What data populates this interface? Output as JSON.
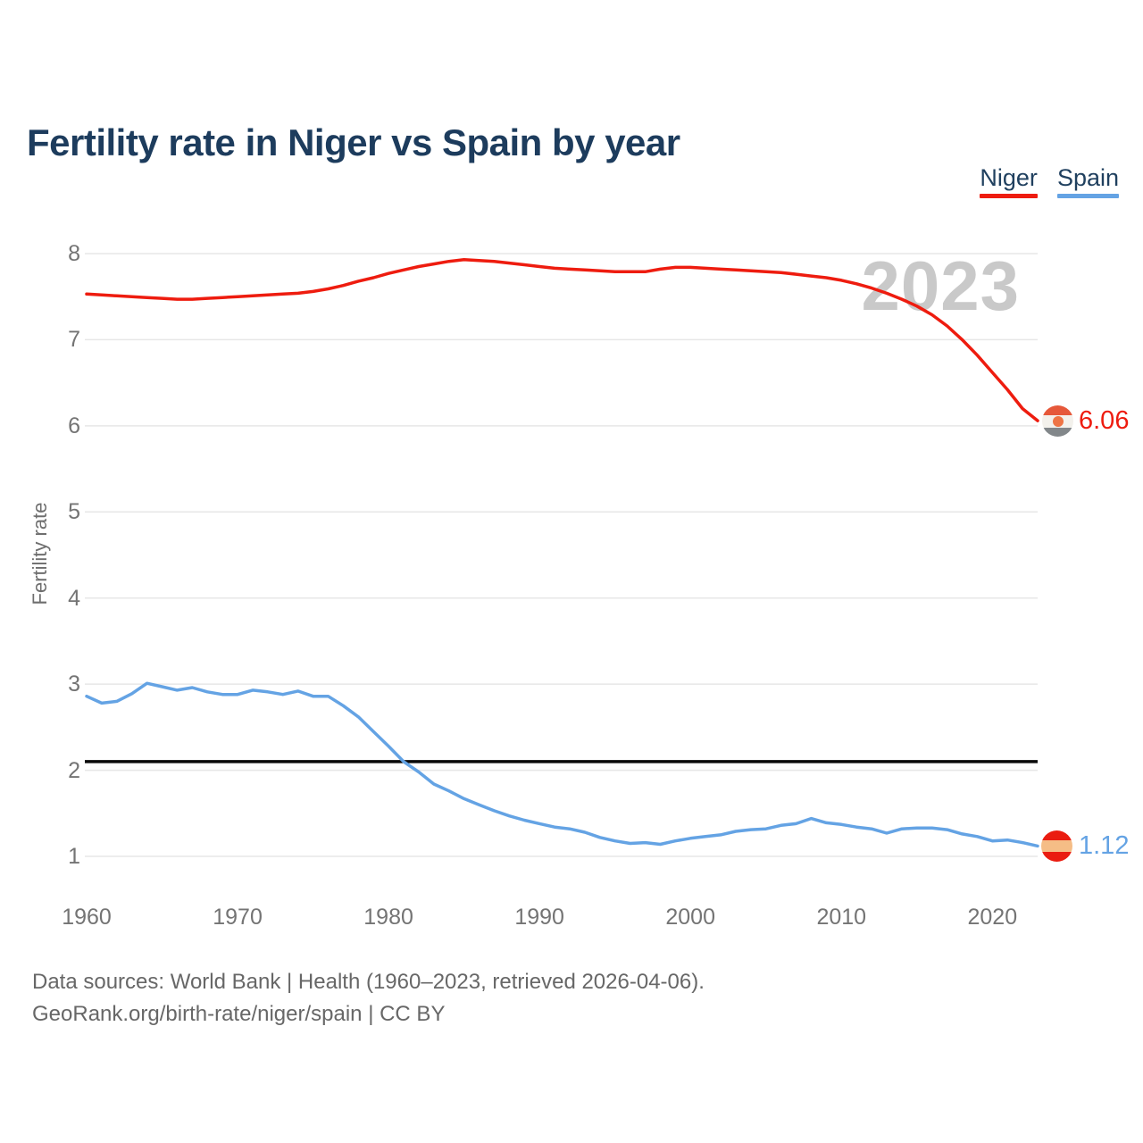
{
  "title": "Fertility rate in Niger vs Spain by year",
  "watermark": "2023",
  "legend": [
    {
      "label": "Niger",
      "color": "#ee1c0f"
    },
    {
      "label": "Spain",
      "color": "#64a3e4"
    }
  ],
  "y_axis": {
    "label": "Fertility rate",
    "ticks": [
      8,
      7,
      6,
      5,
      4,
      3,
      2,
      1
    ]
  },
  "x_axis": {
    "ticks": [
      1960,
      1970,
      1980,
      1990,
      2000,
      2010,
      2020
    ]
  },
  "reference_line": {
    "value": 2.1,
    "color": "#0a0a0a"
  },
  "end_labels": [
    {
      "series": "Niger",
      "value": "6.06",
      "color": "#ee1c0f",
      "icon": "niger-flag-icon"
    },
    {
      "series": "Spain",
      "value": "1.12",
      "color": "#64a3e4",
      "icon": "spain-flag-icon"
    }
  ],
  "footer": {
    "line1": "Data sources: World Bank | Health (1960–2023, retrieved 2026-04-06).",
    "line2": "GeoRank.org/birth-rate/niger/spain | CC BY"
  },
  "chart_data": {
    "type": "line",
    "title": "Fertility rate in Niger vs Spain by year",
    "xlabel": "",
    "ylabel": "Fertility rate",
    "xlim": [
      1960,
      2023
    ],
    "ylim": [
      1,
      8
    ],
    "grid": "horizontal",
    "legend_position": "top-right",
    "annotations": [
      "2023 watermark",
      "black replacement-level line at 2.1"
    ],
    "x": [
      1960,
      1961,
      1962,
      1963,
      1964,
      1965,
      1966,
      1967,
      1968,
      1969,
      1970,
      1971,
      1972,
      1973,
      1974,
      1975,
      1976,
      1977,
      1978,
      1979,
      1980,
      1981,
      1982,
      1983,
      1984,
      1985,
      1986,
      1987,
      1988,
      1989,
      1990,
      1991,
      1992,
      1993,
      1994,
      1995,
      1996,
      1997,
      1998,
      1999,
      2000,
      2001,
      2002,
      2003,
      2004,
      2005,
      2006,
      2007,
      2008,
      2009,
      2010,
      2011,
      2012,
      2013,
      2014,
      2015,
      2016,
      2017,
      2018,
      2019,
      2020,
      2021,
      2022,
      2023
    ],
    "series": [
      {
        "name": "Niger",
        "color": "#ee1c0f",
        "values": [
          7.53,
          7.52,
          7.51,
          7.5,
          7.49,
          7.48,
          7.47,
          7.47,
          7.48,
          7.49,
          7.5,
          7.51,
          7.52,
          7.53,
          7.54,
          7.56,
          7.59,
          7.63,
          7.68,
          7.72,
          7.77,
          7.81,
          7.85,
          7.88,
          7.91,
          7.93,
          7.92,
          7.91,
          7.89,
          7.87,
          7.85,
          7.83,
          7.82,
          7.81,
          7.8,
          7.79,
          7.79,
          7.79,
          7.82,
          7.84,
          7.84,
          7.83,
          7.82,
          7.81,
          7.8,
          7.79,
          7.78,
          7.76,
          7.74,
          7.72,
          7.69,
          7.65,
          7.6,
          7.54,
          7.47,
          7.39,
          7.29,
          7.16,
          7.0,
          6.82,
          6.62,
          6.42,
          6.2,
          6.06
        ]
      },
      {
        "name": "Spain",
        "color": "#64a3e4",
        "values": [
          2.86,
          2.78,
          2.8,
          2.89,
          3.01,
          2.97,
          2.93,
          2.96,
          2.91,
          2.88,
          2.88,
          2.93,
          2.91,
          2.88,
          2.92,
          2.86,
          2.86,
          2.75,
          2.62,
          2.45,
          2.28,
          2.1,
          1.98,
          1.84,
          1.76,
          1.67,
          1.6,
          1.53,
          1.47,
          1.42,
          1.38,
          1.34,
          1.32,
          1.28,
          1.22,
          1.18,
          1.15,
          1.16,
          1.14,
          1.18,
          1.21,
          1.23,
          1.25,
          1.29,
          1.31,
          1.32,
          1.36,
          1.38,
          1.44,
          1.39,
          1.37,
          1.34,
          1.32,
          1.27,
          1.32,
          1.33,
          1.33,
          1.31,
          1.26,
          1.23,
          1.18,
          1.19,
          1.16,
          1.12
        ]
      }
    ],
    "reference_line": 2.1,
    "end_values": {
      "Niger": 6.06,
      "Spain": 1.12
    }
  }
}
